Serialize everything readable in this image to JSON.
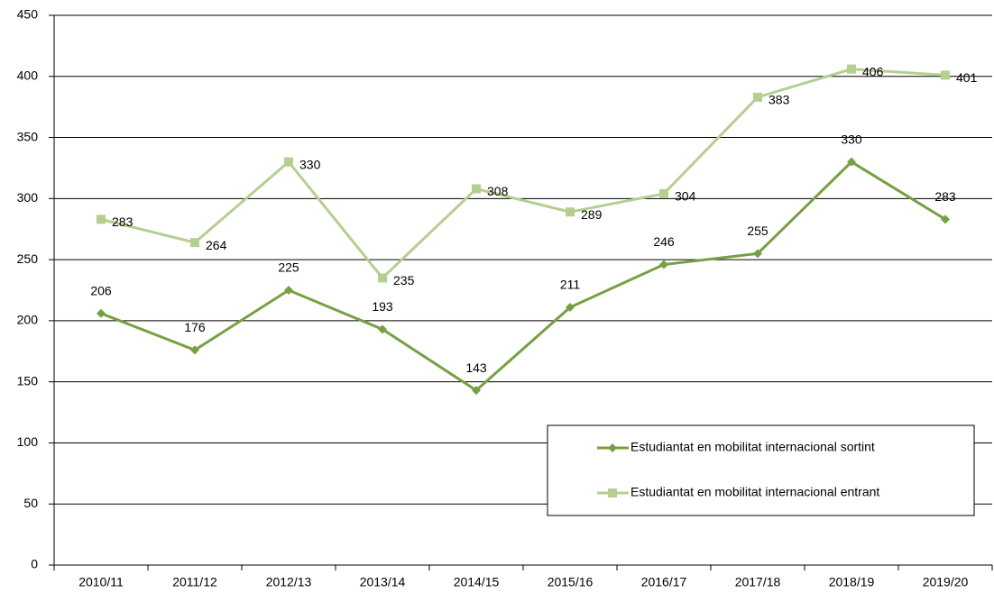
{
  "chart_data": {
    "type": "line",
    "categories": [
      "2010/11",
      "2011/12",
      "2012/13",
      "2013/14",
      "2014/15",
      "2015/16",
      "2016/17",
      "2017/18",
      "2018/19",
      "2019/20"
    ],
    "series": [
      {
        "name": "Estudiantat en mobilitat internacional sortint",
        "color": "#77a043",
        "marker": "diamond",
        "values": [
          206,
          176,
          225,
          193,
          143,
          211,
          246,
          255,
          330,
          283
        ]
      },
      {
        "name": "Estudiantat en mobilitat internacional entrant",
        "color": "#b5cf8f",
        "marker": "square",
        "values": [
          283,
          264,
          330,
          235,
          308,
          289,
          304,
          383,
          406,
          401
        ]
      }
    ],
    "ylim": [
      0,
      450
    ],
    "yticks": [
      0,
      50,
      100,
      150,
      200,
      250,
      300,
      350,
      400,
      450
    ],
    "grid": true,
    "legend": "lower right"
  }
}
